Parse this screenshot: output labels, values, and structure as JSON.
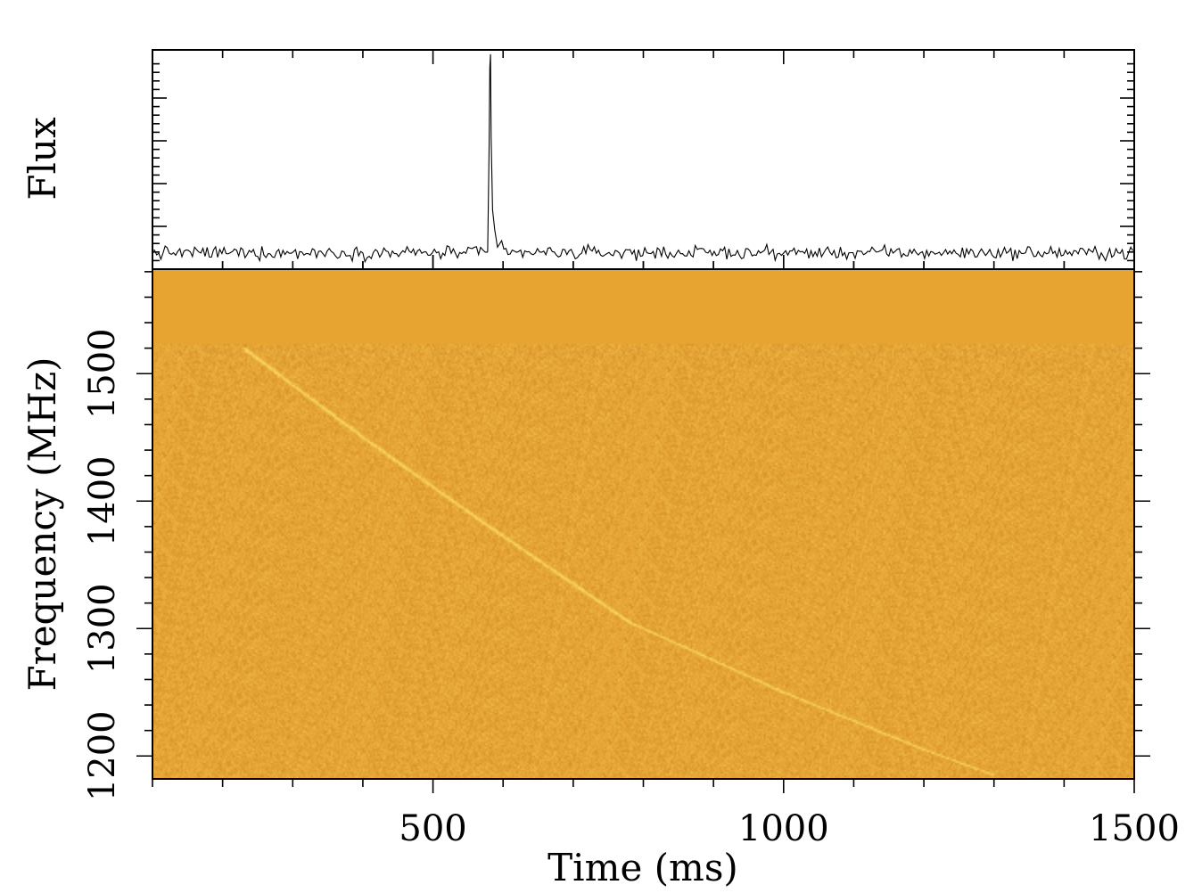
{
  "chart_data": [
    {
      "panel": "flux",
      "type": "line",
      "title": "",
      "xlabel": "",
      "ylabel": "Flux",
      "xlim": [
        100,
        1500
      ],
      "x_tick_labels": [],
      "y_tick_labels": [],
      "grid": false,
      "noise_baseline": 0.075,
      "noise_amplitude": 0.05,
      "series": [
        {
          "x": [
            578,
            580,
            581,
            582,
            583,
            585,
            588,
            592,
            598
          ],
          "y": [
            0.08,
            0.55,
            0.92,
            0.98,
            0.6,
            0.27,
            0.18,
            0.1,
            0.13
          ]
        }
      ]
    },
    {
      "panel": "dynamic-spectrum",
      "type": "heatmap",
      "title": "",
      "xlabel": "Time (ms)",
      "ylabel": "Frequency (MHz)",
      "xlim": [
        100,
        1500
      ],
      "ylim": [
        1182,
        1582
      ],
      "x_tick_labels": [
        "500",
        "1000",
        "1500"
      ],
      "y_tick_labels": [
        "1200",
        "1300",
        "1400",
        "1500"
      ],
      "grid": false,
      "masked_band": [
        1523,
        1582
      ],
      "masked_color": "#e8a430",
      "palette": [
        "#b6701a",
        "#d48e28",
        "#e6a536",
        "#f0bd48",
        "#f8d660"
      ],
      "sweep": {
        "x": [
          230,
          400,
          580,
          780,
          1000,
          1200,
          1300
        ],
        "y": [
          1520,
          1450,
          1380,
          1305,
          1250,
          1205,
          1185
        ]
      }
    }
  ]
}
